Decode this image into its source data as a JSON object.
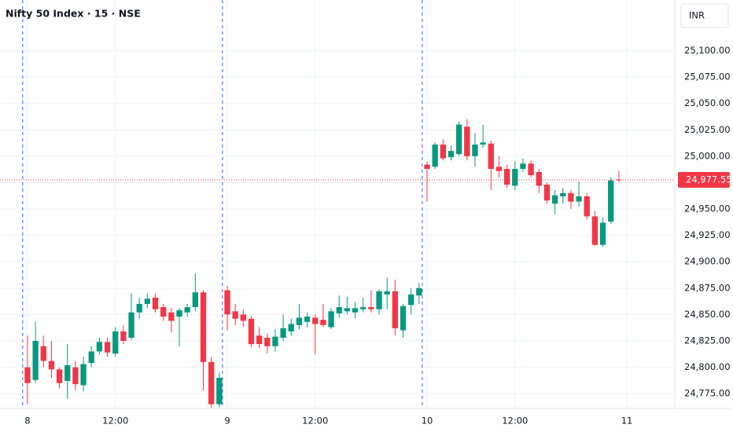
{
  "chart_data": {
    "type": "candlestick",
    "title": "Nifty 50 Index · 15 · NSE",
    "currency": "INR",
    "up_color": "#089981",
    "down_color": "#f23645",
    "open": [
      24800,
      24788,
      24820,
      24806,
      24798,
      24787,
      24800,
      24783,
      24804,
      24815,
      24824,
      24813,
      24834,
      24828,
      24852,
      24860,
      24866,
      24857,
      24852,
      24848,
      24852,
      24857,
      24871,
      24805,
      24765,
      24873,
      24853,
      24850,
      24846,
      24830,
      24828,
      24820,
      24828,
      24834,
      24840,
      24843,
      24847,
      24845,
      24838,
      24851,
      24853,
      24852,
      24855,
      24857,
      24855,
      24869,
      24872,
      24835,
      24859,
      24868,
      24992,
      24990,
      25011,
      24999,
      25002,
      25028,
      25000,
      25011,
      25012,
      24990,
      24988,
      24972,
      24988,
      24993,
      24985,
      24973,
      24955,
      24962,
      24965,
      24957,
      24962,
      24943,
      24916,
      24938,
      24978
    ],
    "high": [
      24830,
      24843,
      24830,
      24825,
      24800,
      24822,
      24806,
      24810,
      24820,
      24828,
      24828,
      24838,
      24840,
      24870,
      24866,
      24870,
      24870,
      24860,
      24856,
      24856,
      24860,
      24889,
      24873,
      24810,
      24795,
      24877,
      24860,
      24855,
      24848,
      24838,
      24832,
      24836,
      24850,
      24846,
      24860,
      24852,
      24850,
      24860,
      24856,
      24868,
      24867,
      24862,
      24866,
      24873,
      24874,
      24885,
      24883,
      24860,
      24875,
      24880,
      24995,
      25013,
      25016,
      25010,
      25033,
      25035,
      25022,
      25030,
      25015,
      25000,
      24992,
      24995,
      24998,
      24996,
      24988,
      24975,
      24968,
      24970,
      24968,
      24976,
      24965,
      24948,
      24942,
      24980,
      24986
    ],
    "low": [
      24765,
      24785,
      24800,
      24790,
      24780,
      24770,
      24778,
      24777,
      24800,
      24812,
      24810,
      24810,
      24822,
      24826,
      24846,
      24856,
      24852,
      24844,
      24833,
      24820,
      24848,
      24853,
      24778,
      24762,
      24762,
      24835,
      24840,
      24838,
      24819,
      24818,
      24813,
      24815,
      24825,
      24830,
      24836,
      24838,
      24812,
      24838,
      24836,
      24847,
      24850,
      24846,
      24852,
      24852,
      24850,
      24855,
      24830,
      24828,
      24850,
      24860,
      24957,
      24988,
      24996,
      24996,
      25000,
      24996,
      24990,
      25008,
      24968,
      24980,
      24970,
      24968,
      24985,
      24980,
      24965,
      24955,
      24945,
      24955,
      24950,
      24952,
      24940,
      24915,
      24914,
      24936,
      24975
    ],
    "close": [
      24785,
      24825,
      24806,
      24798,
      24785,
      24802,
      24784,
      24803,
      24815,
      24824,
      24814,
      24834,
      24825,
      24852,
      24860,
      24865,
      24855,
      24848,
      24844,
      24854,
      24857,
      24871,
      24805,
      24765,
      24790,
      24850,
      24846,
      24844,
      24822,
      24822,
      24820,
      24829,
      24837,
      24841,
      24847,
      24848,
      24841,
      24840,
      24853,
      24857,
      24856,
      24856,
      24857,
      24855,
      24872,
      24872,
      24837,
      24858,
      24869,
      24875,
      24988,
      25011,
      24998,
      25005,
      25030,
      25000,
      25011,
      25013,
      24988,
      24986,
      24973,
      24988,
      24993,
      24982,
      24972,
      24958,
      24963,
      24965,
      24957,
      24962,
      24943,
      24916,
      24937,
      24977,
      24977.55
    ],
    "last_price": {
      "value": 24977.55,
      "label": "24,977.55"
    },
    "session_breaks": [
      0,
      25,
      50
    ],
    "xlim": [
      -3.44,
      81
    ],
    "xticks": [
      {
        "value": 0,
        "label": "8"
      },
      {
        "value": 11,
        "label": "12:00"
      },
      {
        "value": 25,
        "label": "9"
      },
      {
        "value": 36,
        "label": "12:00"
      },
      {
        "value": 50,
        "label": "10"
      },
      {
        "value": 61,
        "label": "12:00"
      },
      {
        "value": 75,
        "label": "11"
      }
    ],
    "ylim": [
      24761,
      25148
    ],
    "yticks": [
      {
        "value": 24775,
        "label": "24,775.00"
      },
      {
        "value": 24800,
        "label": "24,800.00"
      },
      {
        "value": 24825,
        "label": "24,825.00"
      },
      {
        "value": 24850,
        "label": "24,850.00"
      },
      {
        "value": 24875,
        "label": "24,875.00"
      },
      {
        "value": 24900,
        "label": "24,900.00"
      },
      {
        "value": 24925,
        "label": "24,925.00"
      },
      {
        "value": 24950,
        "label": "24,950.00"
      },
      {
        "value": 24975,
        "label": "24,975.00"
      },
      {
        "value": 25000,
        "label": "25,000.00"
      },
      {
        "value": 25025,
        "label": "25,025.00"
      },
      {
        "value": 25050,
        "label": "25,050.00"
      },
      {
        "value": 25075,
        "label": "25,075.00"
      },
      {
        "value": 25100,
        "label": "25,100.00"
      }
    ],
    "grid": true
  }
}
